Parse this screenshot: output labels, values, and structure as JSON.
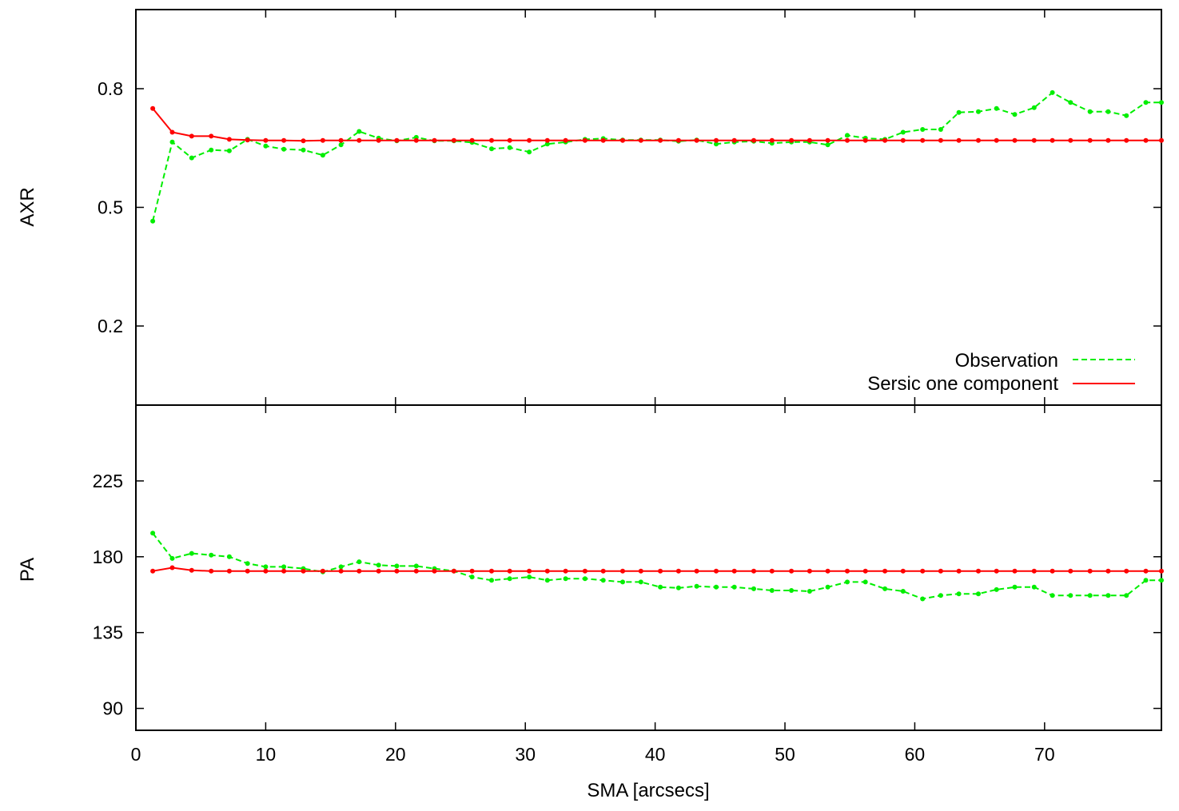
{
  "chart_data": [
    {
      "type": "line",
      "panel": "top",
      "ylabel": "AXR",
      "xlabel": "",
      "xlim": [
        0,
        79
      ],
      "ylim": [
        0.0,
        1.0
      ],
      "yticks": [
        0.2,
        0.5,
        0.8
      ],
      "ytick_labels": [
        "0.2",
        "0.5",
        "0.8"
      ],
      "grid": false,
      "legend_placement": "bottom-right",
      "legend": [
        "Observation",
        "Sersic one component"
      ],
      "series": [
        {
          "name": "Observation",
          "color": "#00ee00",
          "style": "dashed",
          "x": [
            1.3,
            2.8,
            4.3,
            5.8,
            7.2,
            8.6,
            10.0,
            11.4,
            12.9,
            14.4,
            15.8,
            17.2,
            18.7,
            20.1,
            21.6,
            23.0,
            24.5,
            25.9,
            27.4,
            28.8,
            30.3,
            31.7,
            33.1,
            34.6,
            36.0,
            37.5,
            38.9,
            40.4,
            41.8,
            43.2,
            44.7,
            46.1,
            47.6,
            49.0,
            50.5,
            51.9,
            53.3,
            54.8,
            56.2,
            57.7,
            59.1,
            60.6,
            62.0,
            63.4,
            64.9,
            66.3,
            67.7,
            69.2,
            70.6,
            72.0,
            73.5,
            74.9,
            76.3,
            77.8,
            79.0
          ],
          "y": [
            0.465,
            0.665,
            0.625,
            0.645,
            0.643,
            0.672,
            0.655,
            0.647,
            0.645,
            0.632,
            0.658,
            0.692,
            0.675,
            0.668,
            0.677,
            0.668,
            0.668,
            0.664,
            0.648,
            0.651,
            0.64,
            0.66,
            0.665,
            0.672,
            0.674,
            0.67,
            0.67,
            0.67,
            0.667,
            0.67,
            0.66,
            0.665,
            0.667,
            0.662,
            0.665,
            0.665,
            0.658,
            0.682,
            0.675,
            0.672,
            0.69,
            0.697,
            0.697,
            0.74,
            0.742,
            0.75,
            0.735,
            0.752,
            0.79,
            0.765,
            0.742,
            0.742,
            0.732,
            0.765,
            0.765
          ]
        },
        {
          "name": "Sersic one component",
          "color": "#ff0000",
          "style": "solid",
          "x": [
            1.3,
            2.8,
            4.3,
            5.8,
            7.2,
            8.6,
            10.0,
            11.4,
            12.9,
            14.4,
            15.8,
            17.2,
            18.7,
            20.1,
            21.6,
            23.0,
            24.5,
            25.9,
            27.4,
            28.8,
            30.3,
            31.7,
            33.1,
            34.6,
            36.0,
            37.5,
            38.9,
            40.4,
            41.8,
            43.2,
            44.7,
            46.1,
            47.6,
            49.0,
            50.5,
            51.9,
            53.3,
            54.8,
            56.2,
            57.7,
            59.1,
            60.6,
            62.0,
            63.4,
            64.9,
            66.3,
            67.7,
            69.2,
            70.6,
            72.0,
            73.5,
            74.9,
            76.3,
            77.8,
            79.0
          ],
          "y": [
            0.75,
            0.69,
            0.68,
            0.68,
            0.672,
            0.67,
            0.669,
            0.669,
            0.668,
            0.669,
            0.669,
            0.669,
            0.669,
            0.669,
            0.669,
            0.669,
            0.669,
            0.669,
            0.669,
            0.669,
            0.669,
            0.669,
            0.669,
            0.669,
            0.669,
            0.669,
            0.669,
            0.669,
            0.669,
            0.669,
            0.669,
            0.669,
            0.669,
            0.669,
            0.669,
            0.669,
            0.669,
            0.669,
            0.669,
            0.669,
            0.669,
            0.669,
            0.669,
            0.669,
            0.669,
            0.669,
            0.669,
            0.669,
            0.669,
            0.669,
            0.669,
            0.669,
            0.669,
            0.669,
            0.669
          ]
        }
      ]
    },
    {
      "type": "line",
      "panel": "bottom",
      "ylabel": "PA",
      "xlabel": "SMA [arcsecs]",
      "xlim": [
        0,
        79
      ],
      "ylim": [
        77,
        270
      ],
      "xticks": [
        0,
        10,
        20,
        30,
        40,
        50,
        60,
        70
      ],
      "xtick_labels": [
        "0",
        "10",
        "20",
        "30",
        "40",
        "50",
        "60",
        "70"
      ],
      "yticks": [
        90,
        135,
        180,
        225
      ],
      "ytick_labels": [
        "90",
        "135",
        "180",
        "225"
      ],
      "grid": false,
      "series": [
        {
          "name": "Observation",
          "color": "#00ee00",
          "style": "dashed",
          "x": [
            1.3,
            2.8,
            4.3,
            5.8,
            7.2,
            8.6,
            10.0,
            11.4,
            12.9,
            14.4,
            15.8,
            17.2,
            18.7,
            20.1,
            21.6,
            23.0,
            24.5,
            25.9,
            27.4,
            28.8,
            30.3,
            31.7,
            33.1,
            34.6,
            36.0,
            37.5,
            38.9,
            40.4,
            41.8,
            43.2,
            44.7,
            46.1,
            47.6,
            49.0,
            50.5,
            51.9,
            53.3,
            54.8,
            56.2,
            57.7,
            59.1,
            60.6,
            62.0,
            63.4,
            64.9,
            66.3,
            67.7,
            69.2,
            70.6,
            72.0,
            73.5,
            74.9,
            76.3,
            77.8,
            79.0
          ],
          "y": [
            194,
            179,
            182,
            181,
            180,
            176,
            174,
            174,
            173,
            171,
            174,
            177,
            175,
            174.5,
            174.5,
            173,
            171.5,
            168,
            166,
            167,
            168,
            166,
            167,
            167,
            166,
            165,
            165,
            162,
            161.5,
            162.5,
            162,
            162,
            161,
            160,
            160,
            159.5,
            162,
            165,
            165,
            161,
            159.5,
            155,
            157,
            158,
            158,
            160.5,
            162,
            162,
            157,
            157,
            157,
            157,
            157,
            166,
            166
          ]
        },
        {
          "name": "Sersic one component",
          "color": "#ff0000",
          "style": "solid",
          "x": [
            1.3,
            2.8,
            4.3,
            5.8,
            7.2,
            8.6,
            10.0,
            11.4,
            12.9,
            14.4,
            15.8,
            17.2,
            18.7,
            20.1,
            21.6,
            23.0,
            24.5,
            25.9,
            27.4,
            28.8,
            30.3,
            31.7,
            33.1,
            34.6,
            36.0,
            37.5,
            38.9,
            40.4,
            41.8,
            43.2,
            44.7,
            46.1,
            47.6,
            49.0,
            50.5,
            51.9,
            53.3,
            54.8,
            56.2,
            57.7,
            59.1,
            60.6,
            62.0,
            63.4,
            64.9,
            66.3,
            67.7,
            69.2,
            70.6,
            72.0,
            73.5,
            74.9,
            76.3,
            77.8,
            79.0
          ],
          "y": [
            171.5,
            173.5,
            172,
            171.5,
            171.5,
            171.5,
            171.5,
            171.5,
            171.5,
            171.5,
            171.5,
            171.5,
            171.5,
            171.5,
            171.5,
            171.5,
            171.5,
            171.5,
            171.5,
            171.5,
            171.5,
            171.5,
            171.5,
            171.5,
            171.5,
            171.5,
            171.5,
            171.5,
            171.5,
            171.5,
            171.5,
            171.5,
            171.5,
            171.5,
            171.5,
            171.5,
            171.5,
            171.5,
            171.5,
            171.5,
            171.5,
            171.5,
            171.5,
            171.5,
            171.5,
            171.5,
            171.5,
            171.5,
            171.5,
            171.5,
            171.5,
            171.5,
            171.5,
            171.5,
            171.5
          ]
        }
      ]
    }
  ]
}
